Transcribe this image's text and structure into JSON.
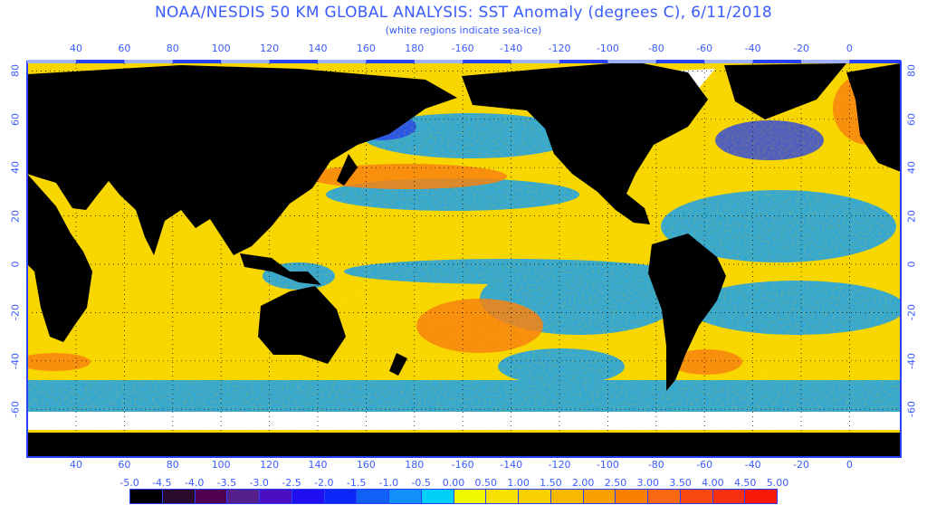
{
  "title": "NOAA/NESDIS 50 KM GLOBAL ANALYSIS: SST Anomaly (degrees C), 6/11/2018",
  "subtitle": "(white regions indicate sea-ice)",
  "map": {
    "projection": "equirectangular",
    "lon_range": [
      20,
      380
    ],
    "lat_range": [
      -80,
      85
    ],
    "lon_ticks": [
      40,
      60,
      80,
      100,
      120,
      140,
      160,
      180,
      -160,
      -140,
      -120,
      -100,
      -80,
      -60,
      -40,
      -20,
      0
    ],
    "lat_ticks": [
      80,
      60,
      40,
      20,
      0,
      -20,
      -40,
      -60
    ],
    "grid": "dotted every 20 degrees",
    "land_color": "#000000",
    "sea_ice_color": "#ffffff"
  },
  "colorbar": {
    "labels": [
      "-5.0",
      "-4.5",
      "-4.0",
      "-3.5",
      "-3.0",
      "-2.5",
      "-2.0",
      "-1.5",
      "-1.0",
      "-0.5",
      "0.00",
      "0.50",
      "1.00",
      "1.50",
      "2.00",
      "2.50",
      "3.00",
      "3.50",
      "4.00",
      "4.50",
      "5.00"
    ],
    "colors": [
      "#000000",
      "#2a0a2a",
      "#500050",
      "#55208a",
      "#4a10c0",
      "#1e10f0",
      "#0a28f8",
      "#1060f8",
      "#1090f8",
      "#00d0f8",
      "#f0f800",
      "#f8e000",
      "#f8d000",
      "#f8b800",
      "#f8a000",
      "#f88000",
      "#f86810",
      "#f84810",
      "#f83010",
      "#f81808"
    ]
  }
}
